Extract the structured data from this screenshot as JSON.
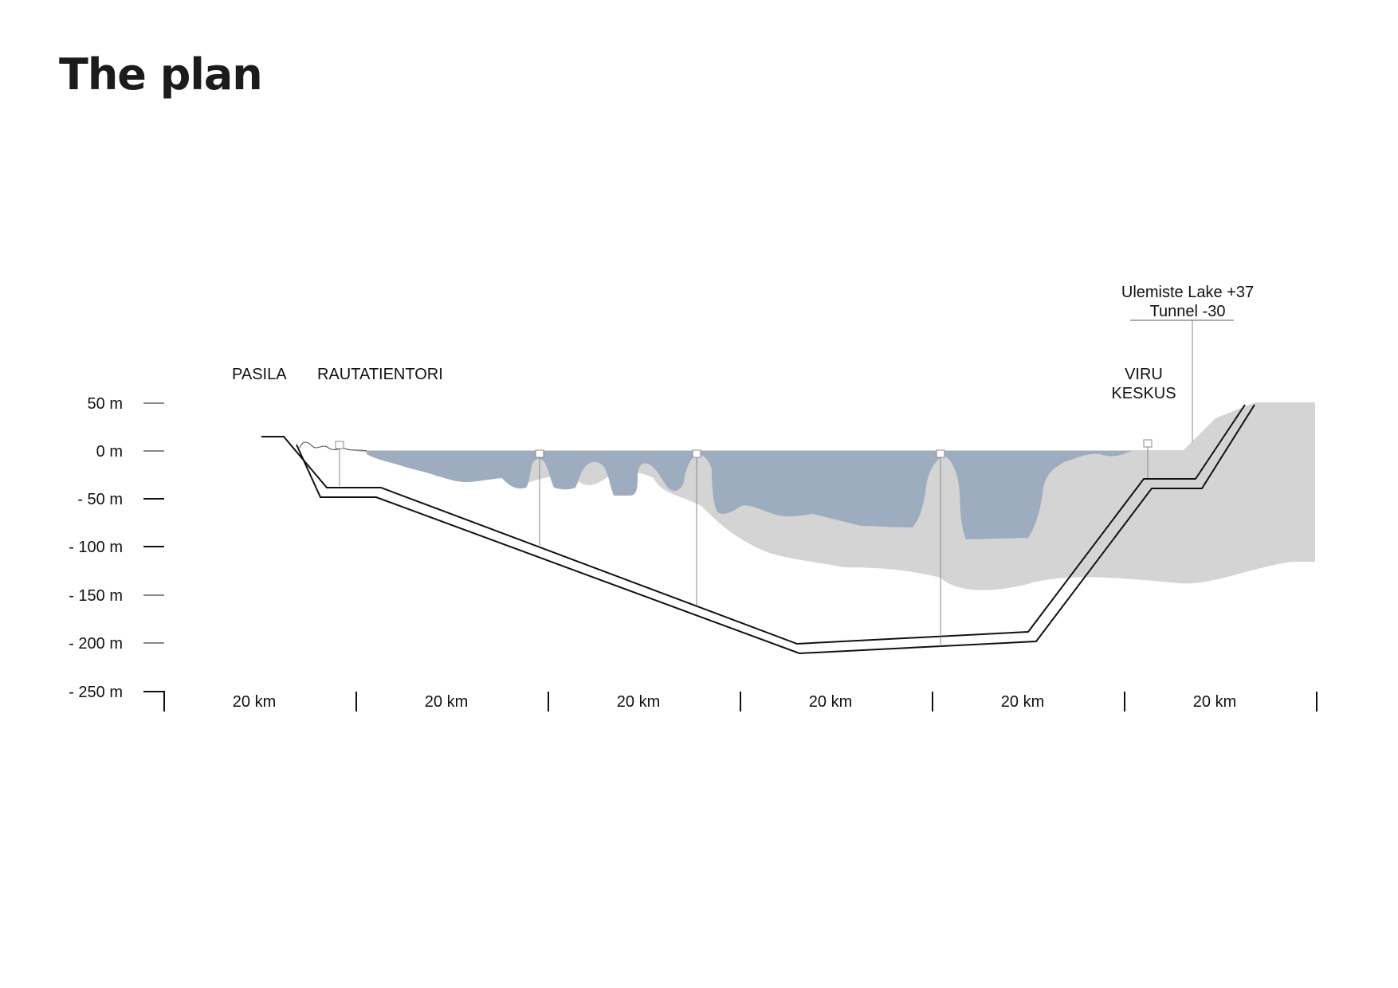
{
  "title": "The plan",
  "depth_scale": [
    {
      "label": "50 m",
      "value": 50
    },
    {
      "label": "0 m",
      "value": 0
    },
    {
      "label": "- 50 m",
      "value": -50
    },
    {
      "label": "- 100 m",
      "value": -100
    },
    {
      "label": "- 150 m",
      "value": -150
    },
    {
      "label": "- 200 m",
      "value": -200
    },
    {
      "label": "- 250 m",
      "value": -250
    }
  ],
  "distance_labels": [
    "20 km",
    "20 km",
    "20 km",
    "20 km",
    "20 km",
    "20 km"
  ],
  "stations": {
    "pasila": "PASILA",
    "rautatientori": "RAUTATIENTORI",
    "viru_line1": "VIRU",
    "viru_line2": "KESKUS"
  },
  "annotation": {
    "line1": "Ulemiste Lake +37",
    "line2": "Tunnel -30"
  },
  "colors": {
    "water": "#9eacbf",
    "seabed": "#d4d4d4",
    "tunnel": "#111111"
  }
}
